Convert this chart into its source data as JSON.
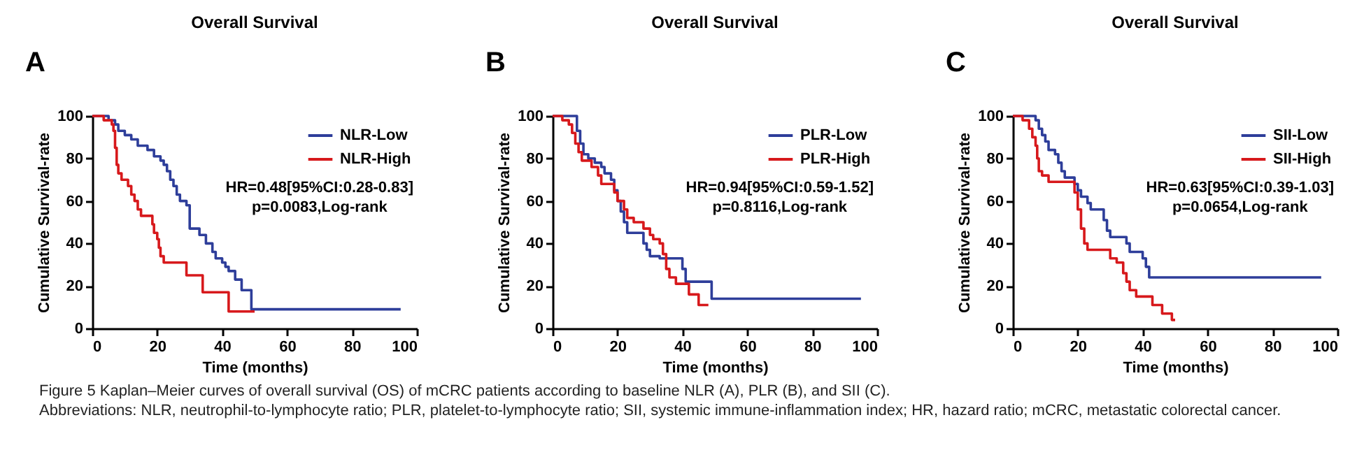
{
  "chart_data": [
    {
      "type": "step",
      "title": "Overall Survival",
      "xlabel": "Time (months)",
      "ylabel": "Cumulative Survival-rate",
      "xlim": [
        0,
        100
      ],
      "ylim": [
        0,
        100
      ],
      "xticks": [
        0,
        20,
        40,
        60,
        80,
        100
      ],
      "yticks": [
        0,
        20,
        40,
        60,
        80,
        100
      ],
      "grid": false,
      "legend": "top right",
      "annotations": [
        "A",
        "HR=0.48[95%CI:0.28-0.83]",
        "p=0.0083,Log-rank",
        "Figure 5 Kaplan–Meier curves of overall survival (OS) of mCRC patients according to baseline NLR (A), PLR (B), and SII (C).",
        "Abbreviations: NLR, neutrophil-to-lymphocyte ratio; PLR, platelet-to-lymphocyte ratio; SII, systemic immune-inflammation index; HR, hazard ratio; mCRC, metastatic colorectal cancer."
      ],
      "series": [
        {
          "name": "NLR-Low",
          "color": "#2e3e9a",
          "x": [
            0,
            5,
            7,
            8,
            10,
            12,
            14,
            17,
            19,
            21,
            22,
            23,
            24,
            25,
            26,
            27,
            29,
            30,
            33,
            35,
            37,
            38,
            40,
            41,
            42,
            44,
            46,
            49,
            95
          ],
          "values": [
            100,
            98,
            96,
            93,
            91,
            89,
            86,
            84,
            81,
            79,
            77,
            74,
            70,
            67,
            63,
            60,
            58,
            47,
            44,
            40,
            36,
            33,
            31,
            29,
            27,
            23,
            18,
            9,
            9
          ]
        },
        {
          "name": "NLR-High",
          "color": "#d7191c",
          "x": [
            0,
            3.5,
            6,
            6.5,
            7,
            7.5,
            8,
            9,
            11,
            12,
            13,
            14,
            15,
            18.5,
            19,
            20,
            20.5,
            21,
            22,
            29,
            34,
            42,
            50
          ],
          "values": [
            100,
            98,
            96,
            93,
            85,
            77,
            73,
            70,
            67,
            63,
            60,
            56,
            53,
            49,
            45,
            42,
            38,
            34,
            31,
            25,
            17,
            8,
            8
          ]
        }
      ]
    },
    {
      "type": "step",
      "title": "Overall Survival",
      "xlabel": "Time (months)",
      "ylabel": "Cumulative Survival-rate",
      "xlim": [
        0,
        100
      ],
      "ylim": [
        0,
        100
      ],
      "xticks": [
        0,
        20,
        40,
        60,
        80,
        100
      ],
      "yticks": [
        0,
        20,
        40,
        60,
        80,
        100
      ],
      "grid": false,
      "legend": "top right",
      "annotations": [
        "B",
        "HR=0.94[95%CI:0.59-1.52]",
        "p=0.8116,Log-rank"
      ],
      "series": [
        {
          "name": "PLR-Low",
          "color": "#2e3e9a",
          "x": [
            0,
            7.5,
            8.5,
            9.5,
            11,
            13,
            15,
            16,
            18,
            19,
            20,
            21,
            22,
            23,
            28,
            29,
            30,
            33,
            40,
            41,
            49,
            95
          ],
          "values": [
            100,
            93,
            87,
            82,
            80,
            78,
            76,
            73,
            70,
            65,
            60,
            55,
            50,
            45,
            40,
            37,
            34,
            33,
            28,
            22,
            14,
            14
          ]
        },
        {
          "name": "PLR-High",
          "color": "#d7191c",
          "x": [
            0,
            3,
            5,
            6,
            7,
            8,
            9,
            12,
            14,
            15,
            19,
            20,
            22,
            23,
            25,
            28,
            30,
            31,
            33,
            34,
            35,
            36,
            38,
            42,
            45,
            48
          ],
          "values": [
            100,
            98,
            96,
            92,
            87,
            83,
            79,
            76,
            72,
            68,
            64,
            60,
            56,
            52,
            50,
            47,
            44,
            42,
            40,
            35,
            28,
            24,
            21,
            16,
            11,
            11
          ]
        }
      ]
    },
    {
      "type": "step",
      "title": "Overall Survival",
      "xlabel": "Time (months)",
      "ylabel": "Cumulative Survival-rate",
      "xlim": [
        0,
        100
      ],
      "ylim": [
        0,
        100
      ],
      "xticks": [
        0,
        20,
        40,
        60,
        80,
        100
      ],
      "yticks": [
        0,
        20,
        40,
        60,
        80,
        100
      ],
      "grid": false,
      "legend": "top right",
      "annotations": [
        "C",
        "HR=0.63[95%CI:0.39-1.03]",
        "p=0.0654,Log-rank"
      ],
      "series": [
        {
          "name": "SII-Low",
          "color": "#2e3e9a",
          "x": [
            0,
            7,
            8,
            9,
            10,
            11,
            13,
            14,
            15,
            16,
            19,
            20,
            21,
            23,
            24,
            28,
            29,
            30,
            35,
            36,
            40,
            41,
            42,
            95
          ],
          "values": [
            100,
            98,
            94,
            91,
            88,
            84,
            82,
            78,
            74,
            71,
            68,
            65,
            62,
            59,
            56,
            51,
            46,
            43,
            40,
            36,
            33,
            29,
            24,
            24
          ]
        },
        {
          "name": "SII-High",
          "color": "#d7191c",
          "x": [
            0,
            3,
            5,
            6,
            7,
            7.5,
            8,
            9,
            11,
            19,
            20,
            21,
            22,
            23,
            30,
            32,
            34,
            35,
            36,
            38,
            43,
            46,
            49,
            50
          ],
          "values": [
            100,
            98,
            94,
            90,
            86,
            80,
            74,
            72,
            69,
            64,
            56,
            47,
            40,
            37,
            33,
            31,
            26,
            22,
            18,
            15,
            11,
            7,
            4,
            4
          ]
        }
      ]
    }
  ]
}
